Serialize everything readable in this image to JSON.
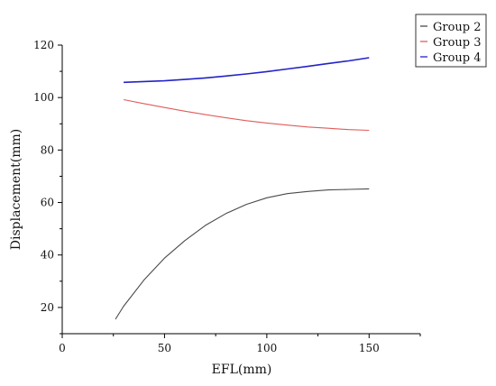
{
  "chart_data": {
    "type": "line",
    "title": "",
    "xlabel": "EFL(mm)",
    "ylabel": "Displacement(mm)",
    "xlim": [
      0,
      175
    ],
    "ylim": [
      10,
      120
    ],
    "xticks": [
      0,
      50,
      100,
      150
    ],
    "yticks": [
      20,
      40,
      60,
      80,
      100,
      120
    ],
    "legend_position": "top-right",
    "grid": false,
    "series": [
      {
        "name": "Group 2",
        "color": "#4a4a4a",
        "x": [
          26,
          30,
          40,
          50,
          60,
          70,
          80,
          90,
          100,
          110,
          120,
          130,
          140,
          150
        ],
        "y": [
          15.5,
          20.5,
          30.5,
          38.8,
          45.5,
          51.3,
          55.8,
          59.3,
          61.8,
          63.4,
          64.2,
          64.8,
          65.0,
          65.2
        ]
      },
      {
        "name": "Group 3",
        "color": "#e05c5c",
        "x": [
          30,
          40,
          50,
          60,
          70,
          80,
          90,
          100,
          110,
          120,
          130,
          140,
          150
        ],
        "y": [
          99.2,
          97.7,
          96.2,
          94.8,
          93.5,
          92.3,
          91.2,
          90.3,
          89.5,
          88.8,
          88.3,
          87.8,
          87.5
        ]
      },
      {
        "name": "Group 4",
        "color": "#2323c8",
        "x": [
          30,
          40,
          50,
          60,
          70,
          80,
          90,
          100,
          110,
          120,
          130,
          140,
          150
        ],
        "y": [
          105.8,
          106.1,
          106.4,
          106.9,
          107.5,
          108.2,
          109.0,
          109.9,
          110.9,
          111.9,
          113.0,
          114.0,
          115.2
        ]
      }
    ]
  }
}
